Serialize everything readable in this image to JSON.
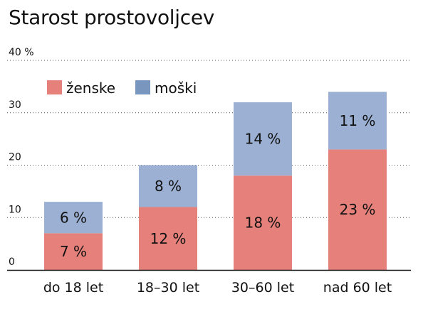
{
  "chart_data": {
    "type": "bar",
    "stacked": true,
    "title": "Starost prostovoljcev",
    "categories": [
      "do 18 let",
      "18–30 let",
      "30–60 let",
      "nad 60 let"
    ],
    "series": [
      {
        "name": "ženske",
        "values": [
          7,
          12,
          18,
          23
        ],
        "labels": [
          "7 %",
          "12 %",
          "18 %",
          "23 %"
        ],
        "color": "#e5807a"
      },
      {
        "name": "moški",
        "values": [
          6,
          8,
          14,
          11
        ],
        "labels": [
          "6 %",
          "8 %",
          "14 %",
          "11 %"
        ],
        "color": "#9bb0d2"
      }
    ],
    "ylim": [
      0,
      40
    ],
    "yticks": [
      {
        "value": 0,
        "label": "0"
      },
      {
        "value": 10,
        "label": "10"
      },
      {
        "value": 20,
        "label": "20"
      },
      {
        "value": 30,
        "label": "30"
      },
      {
        "value": 40,
        "label": "40 %"
      }
    ],
    "grid": "dotted horizontal",
    "legend": "top-left",
    "legend_colors": {
      "ženske": "#e5807a",
      "moški": "#7896be"
    }
  }
}
